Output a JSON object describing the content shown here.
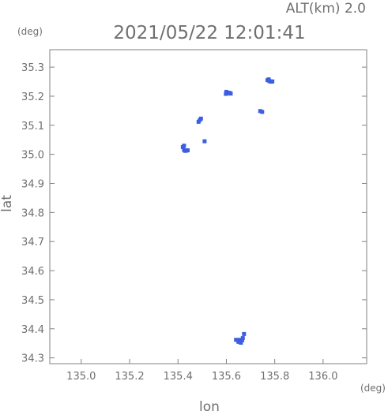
{
  "header": {
    "altitude_label": "ALT(km) 2.0",
    "timestamp": "2021/05/22 12:01:41"
  },
  "chart_data": {
    "type": "scatter",
    "title": "2021/05/22 12:01:41",
    "subtitle": "ALT(km) 2.0",
    "xlabel": "lon",
    "ylabel": "lat",
    "x_unit": "(deg)",
    "y_unit": "(deg)",
    "xlim": [
      134.87,
      136.18
    ],
    "ylim": [
      34.28,
      35.36
    ],
    "x_ticks": [
      "135.0",
      "135.2",
      "135.4",
      "135.6",
      "135.8",
      "136.0"
    ],
    "y_ticks": [
      "34.3",
      "34.4",
      "34.5",
      "34.6",
      "34.7",
      "34.8",
      "34.9",
      "35.0",
      "35.1",
      "35.2",
      "35.3"
    ],
    "grid": false,
    "marker_color": "#3d5ee0",
    "points": [
      {
        "x": 135.425,
        "y": 35.015
      },
      {
        "x": 135.435,
        "y": 35.013
      },
      {
        "x": 135.42,
        "y": 35.025
      },
      {
        "x": 135.425,
        "y": 35.03
      },
      {
        "x": 135.43,
        "y": 35.012
      },
      {
        "x": 135.44,
        "y": 35.014
      },
      {
        "x": 135.51,
        "y": 35.045
      },
      {
        "x": 135.485,
        "y": 35.112
      },
      {
        "x": 135.49,
        "y": 35.118
      },
      {
        "x": 135.495,
        "y": 35.123
      },
      {
        "x": 135.6,
        "y": 35.215
      },
      {
        "x": 135.605,
        "y": 35.21
      },
      {
        "x": 135.612,
        "y": 35.212
      },
      {
        "x": 135.598,
        "y": 35.208
      },
      {
        "x": 135.618,
        "y": 35.209
      },
      {
        "x": 135.74,
        "y": 35.149
      },
      {
        "x": 135.748,
        "y": 35.146
      },
      {
        "x": 135.77,
        "y": 35.255
      },
      {
        "x": 135.778,
        "y": 35.252
      },
      {
        "x": 135.785,
        "y": 35.25
      },
      {
        "x": 135.775,
        "y": 35.258
      },
      {
        "x": 135.79,
        "y": 35.251
      },
      {
        "x": 135.64,
        "y": 34.362
      },
      {
        "x": 135.65,
        "y": 34.355
      },
      {
        "x": 135.655,
        "y": 34.362
      },
      {
        "x": 135.66,
        "y": 34.352
      },
      {
        "x": 135.665,
        "y": 34.36
      },
      {
        "x": 135.668,
        "y": 34.368
      },
      {
        "x": 135.673,
        "y": 34.382
      }
    ]
  }
}
